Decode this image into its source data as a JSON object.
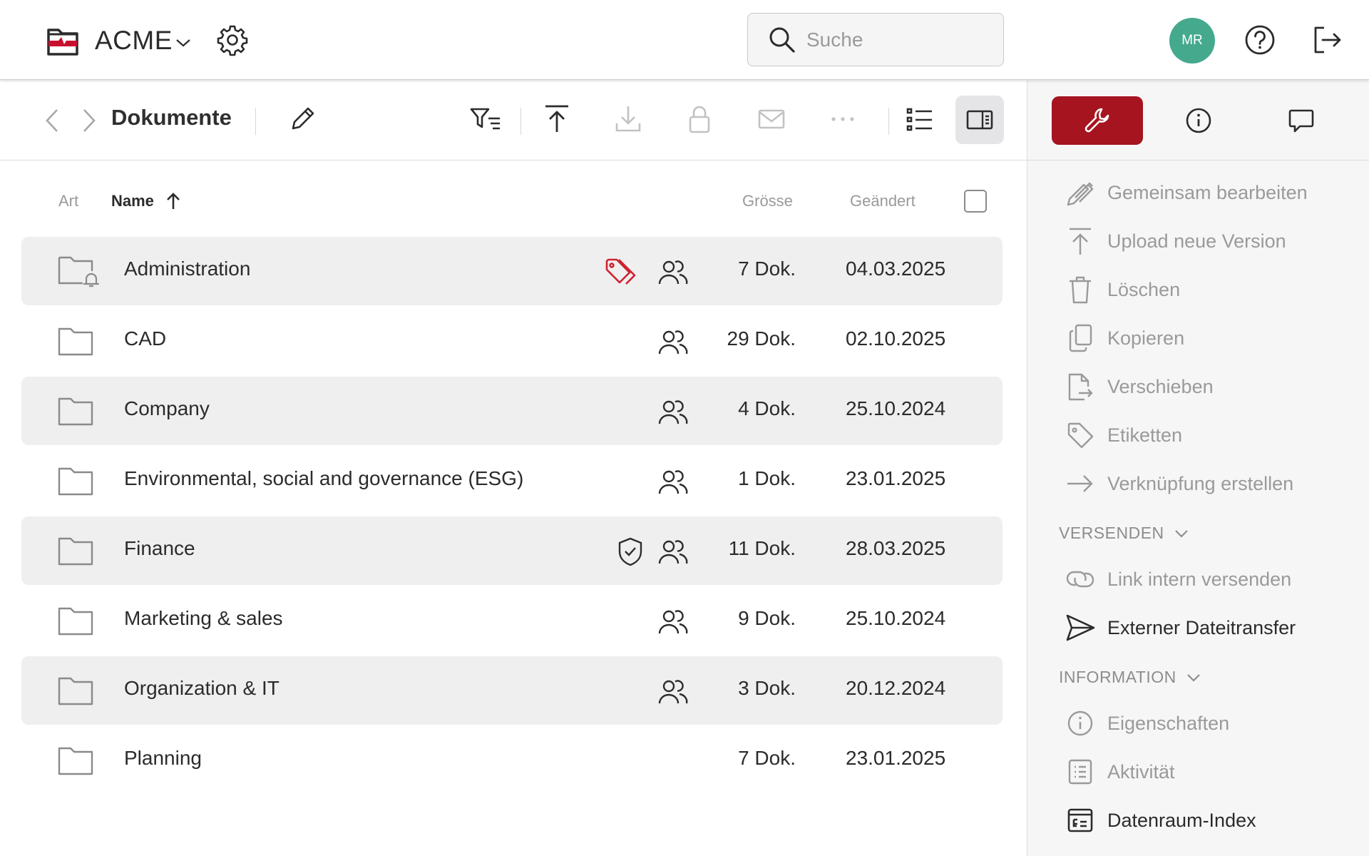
{
  "header": {
    "brand_name": "ACME",
    "search_placeholder": "Suche",
    "avatar_initials": "MR",
    "accent_color": "#a61420",
    "avatar_color": "#45a98e"
  },
  "toolbar": {
    "title": "Dokumente"
  },
  "columns": {
    "type": "Art",
    "name": "Name",
    "size": "Grösse",
    "modified": "Geändert"
  },
  "rows": [
    {
      "name": "Administration",
      "size": "7 Dok.",
      "date": "04.03.2025",
      "shared": true,
      "tags": true,
      "protected": false,
      "notify": true
    },
    {
      "name": "CAD",
      "size": "29 Dok.",
      "date": "02.10.2025",
      "shared": true,
      "tags": false,
      "protected": false,
      "notify": false
    },
    {
      "name": "Company",
      "size": "4 Dok.",
      "date": "25.10.2024",
      "shared": true,
      "tags": false,
      "protected": false,
      "notify": false
    },
    {
      "name": "Environmental, social and governance (ESG)",
      "size": "1 Dok.",
      "date": "23.01.2025",
      "shared": true,
      "tags": false,
      "protected": false,
      "notify": false
    },
    {
      "name": "Finance",
      "size": "11 Dok.",
      "date": "28.03.2025",
      "shared": true,
      "tags": false,
      "protected": true,
      "notify": false
    },
    {
      "name": "Marketing & sales",
      "size": "9 Dok.",
      "date": "25.10.2024",
      "shared": true,
      "tags": false,
      "protected": false,
      "notify": false
    },
    {
      "name": "Organization & IT",
      "size": "3 Dok.",
      "date": "20.12.2024",
      "shared": true,
      "tags": false,
      "protected": false,
      "notify": false
    },
    {
      "name": "Planning",
      "size": "7 Dok.",
      "date": "23.01.2025",
      "shared": false,
      "tags": false,
      "protected": false,
      "notify": false
    }
  ],
  "panel": {
    "actions": [
      {
        "label": "Gemeinsam bearbeiten",
        "icon": "co-edit-icon"
      },
      {
        "label": "Upload neue Version",
        "icon": "upload-icon"
      },
      {
        "label": "Löschen",
        "icon": "trash-icon"
      },
      {
        "label": "Kopieren",
        "icon": "copy-icon"
      },
      {
        "label": "Verschieben",
        "icon": "move-icon"
      },
      {
        "label": "Etiketten",
        "icon": "tag-icon"
      },
      {
        "label": "Verknüpfung erstellen",
        "icon": "arrow-right-icon"
      }
    ],
    "send_section": "VERSENDEN",
    "send_items": [
      {
        "label": "Link intern versenden",
        "icon": "link-icon"
      },
      {
        "label": "Externer Dateitransfer",
        "icon": "send-icon"
      }
    ],
    "info_section": "INFORMATION",
    "info_items": [
      {
        "label": "Eigenschaften",
        "icon": "info-icon"
      },
      {
        "label": "Aktivität",
        "icon": "activity-icon"
      },
      {
        "label": "Datenraum-Index",
        "icon": "index-icon"
      }
    ]
  }
}
